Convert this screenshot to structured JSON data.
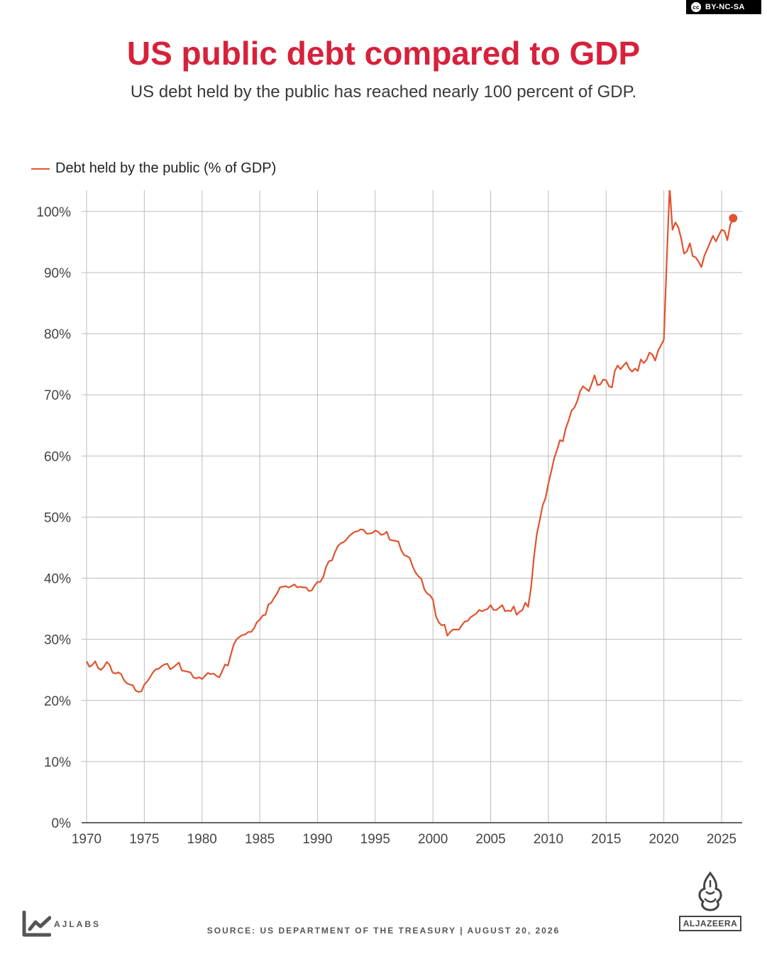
{
  "license": {
    "badge_text": "BY-NC-SA",
    "icon": "cc-icon"
  },
  "header": {
    "title": "US public debt compared to GDP",
    "subtitle": "US debt held by the public has reached nearly 100 percent of GDP."
  },
  "footer": {
    "source": "SOURCE: US DEPARTMENT OF THE TREASURY  |  AUGUST 20, 2026",
    "ajlabs_text": "AJLABS",
    "aljazeera_text": "ALJAZEERA"
  },
  "colors": {
    "title": "#d7213b",
    "line": "#e0532f",
    "grid": "#bdbdbd",
    "axis": "#333333"
  },
  "chart_data": {
    "type": "line",
    "title": "US public debt compared to GDP",
    "subtitle": "US debt held by the public has reached nearly 100 percent of GDP.",
    "xlabel": "",
    "ylabel": "",
    "xlim": [
      1969.5,
      2026.8
    ],
    "ylim": [
      0,
      103
    ],
    "x_ticks": [
      1970,
      1975,
      1980,
      1985,
      1990,
      1995,
      2000,
      2005,
      2010,
      2015,
      2020,
      2025
    ],
    "y_ticks": [
      0,
      10,
      20,
      30,
      40,
      50,
      60,
      70,
      80,
      90,
      100
    ],
    "y_tick_labels": [
      "0%",
      "10%",
      "20%",
      "30%",
      "40%",
      "50%",
      "60%",
      "70%",
      "80%",
      "90%",
      "100%"
    ],
    "grid": true,
    "legend_position": "top-left",
    "series": [
      {
        "name": "Debt held by the public (% of GDP)",
        "color": "#e0532f",
        "last_point_marker": true,
        "points": [
          [
            1970.0,
            26.4
          ],
          [
            1970.25,
            25.5
          ],
          [
            1970.5,
            25.8
          ],
          [
            1970.75,
            26.4
          ],
          [
            1971.0,
            25.3
          ],
          [
            1971.25,
            25.0
          ],
          [
            1971.5,
            25.5
          ],
          [
            1971.75,
            26.3
          ],
          [
            1972.0,
            25.8
          ],
          [
            1972.25,
            24.6
          ],
          [
            1972.5,
            24.4
          ],
          [
            1972.75,
            24.6
          ],
          [
            1973.0,
            24.3
          ],
          [
            1973.25,
            23.3
          ],
          [
            1973.5,
            22.8
          ],
          [
            1973.75,
            22.6
          ],
          [
            1974.0,
            22.5
          ],
          [
            1974.25,
            21.6
          ],
          [
            1974.5,
            21.4
          ],
          [
            1974.75,
            21.5
          ],
          [
            1975.0,
            22.6
          ],
          [
            1975.25,
            23.1
          ],
          [
            1975.5,
            23.8
          ],
          [
            1975.75,
            24.6
          ],
          [
            1976.0,
            25.1
          ],
          [
            1976.25,
            25.2
          ],
          [
            1976.5,
            25.6
          ],
          [
            1976.75,
            25.9
          ],
          [
            1977.0,
            26.0
          ],
          [
            1977.25,
            25.1
          ],
          [
            1977.5,
            25.4
          ],
          [
            1977.75,
            25.8
          ],
          [
            1978.0,
            26.2
          ],
          [
            1978.25,
            24.9
          ],
          [
            1978.5,
            24.8
          ],
          [
            1978.75,
            24.7
          ],
          [
            1979.0,
            24.6
          ],
          [
            1979.25,
            23.8
          ],
          [
            1979.5,
            23.6
          ],
          [
            1979.75,
            23.8
          ],
          [
            1980.0,
            23.5
          ],
          [
            1980.25,
            24.0
          ],
          [
            1980.5,
            24.5
          ],
          [
            1980.75,
            24.3
          ],
          [
            1981.0,
            24.4
          ],
          [
            1981.25,
            24.0
          ],
          [
            1981.5,
            23.8
          ],
          [
            1981.75,
            24.8
          ],
          [
            1982.0,
            25.9
          ],
          [
            1982.25,
            25.7
          ],
          [
            1982.5,
            27.5
          ],
          [
            1982.75,
            29.2
          ],
          [
            1983.0,
            30.0
          ],
          [
            1983.25,
            30.4
          ],
          [
            1983.5,
            30.7
          ],
          [
            1983.75,
            30.8
          ],
          [
            1984.0,
            31.2
          ],
          [
            1984.25,
            31.2
          ],
          [
            1984.5,
            31.8
          ],
          [
            1984.75,
            32.8
          ],
          [
            1985.0,
            33.2
          ],
          [
            1985.25,
            33.9
          ],
          [
            1985.5,
            34.0
          ],
          [
            1985.75,
            35.7
          ],
          [
            1986.0,
            36.0
          ],
          [
            1986.25,
            36.8
          ],
          [
            1986.5,
            37.5
          ],
          [
            1986.75,
            38.5
          ],
          [
            1987.0,
            38.6
          ],
          [
            1987.25,
            38.7
          ],
          [
            1987.5,
            38.5
          ],
          [
            1987.75,
            38.7
          ],
          [
            1988.0,
            39.0
          ],
          [
            1988.25,
            38.5
          ],
          [
            1988.5,
            38.6
          ],
          [
            1988.75,
            38.5
          ],
          [
            1989.0,
            38.5
          ],
          [
            1989.25,
            37.9
          ],
          [
            1989.5,
            38.0
          ],
          [
            1989.75,
            38.8
          ],
          [
            1990.0,
            39.4
          ],
          [
            1990.25,
            39.4
          ],
          [
            1990.5,
            40.2
          ],
          [
            1990.75,
            41.9
          ],
          [
            1991.0,
            42.8
          ],
          [
            1991.25,
            42.9
          ],
          [
            1991.5,
            44.2
          ],
          [
            1991.75,
            45.2
          ],
          [
            1992.0,
            45.7
          ],
          [
            1992.25,
            45.9
          ],
          [
            1992.5,
            46.3
          ],
          [
            1992.75,
            46.9
          ],
          [
            1993.0,
            47.3
          ],
          [
            1993.25,
            47.6
          ],
          [
            1993.5,
            47.7
          ],
          [
            1993.75,
            48.0
          ],
          [
            1994.0,
            47.9
          ],
          [
            1994.25,
            47.3
          ],
          [
            1994.5,
            47.3
          ],
          [
            1994.75,
            47.4
          ],
          [
            1995.0,
            47.8
          ],
          [
            1995.25,
            47.6
          ],
          [
            1995.5,
            47.1
          ],
          [
            1995.75,
            47.2
          ],
          [
            1996.0,
            47.6
          ],
          [
            1996.25,
            46.3
          ],
          [
            1996.5,
            46.2
          ],
          [
            1996.75,
            46.1
          ],
          [
            1997.0,
            46.0
          ],
          [
            1997.25,
            44.6
          ],
          [
            1997.5,
            43.8
          ],
          [
            1997.75,
            43.6
          ],
          [
            1998.0,
            43.3
          ],
          [
            1998.25,
            41.9
          ],
          [
            1998.5,
            40.9
          ],
          [
            1998.75,
            40.3
          ],
          [
            1999.0,
            39.9
          ],
          [
            1999.25,
            38.2
          ],
          [
            1999.5,
            37.5
          ],
          [
            1999.75,
            37.2
          ],
          [
            2000.0,
            36.5
          ],
          [
            2000.25,
            33.8
          ],
          [
            2000.5,
            32.8
          ],
          [
            2000.75,
            32.3
          ],
          [
            2001.0,
            32.4
          ],
          [
            2001.25,
            30.6
          ],
          [
            2001.5,
            31.2
          ],
          [
            2001.75,
            31.6
          ],
          [
            2002.0,
            31.6
          ],
          [
            2002.25,
            31.6
          ],
          [
            2002.5,
            32.3
          ],
          [
            2002.75,
            32.9
          ],
          [
            2003.0,
            33.0
          ],
          [
            2003.25,
            33.6
          ],
          [
            2003.5,
            33.9
          ],
          [
            2003.75,
            34.2
          ],
          [
            2004.0,
            34.8
          ],
          [
            2004.25,
            34.6
          ],
          [
            2004.5,
            34.8
          ],
          [
            2004.75,
            35.0
          ],
          [
            2005.0,
            35.6
          ],
          [
            2005.25,
            34.8
          ],
          [
            2005.5,
            34.8
          ],
          [
            2005.75,
            35.2
          ],
          [
            2006.0,
            35.6
          ],
          [
            2006.25,
            34.6
          ],
          [
            2006.5,
            34.7
          ],
          [
            2006.75,
            34.6
          ],
          [
            2007.0,
            35.4
          ],
          [
            2007.25,
            34.0
          ],
          [
            2007.5,
            34.5
          ],
          [
            2007.75,
            34.8
          ],
          [
            2008.0,
            36.0
          ],
          [
            2008.25,
            35.3
          ],
          [
            2008.5,
            38.5
          ],
          [
            2008.75,
            43.5
          ],
          [
            2009.0,
            47.2
          ],
          [
            2009.25,
            49.5
          ],
          [
            2009.5,
            51.9
          ],
          [
            2009.75,
            53.1
          ],
          [
            2010.0,
            55.5
          ],
          [
            2010.25,
            57.5
          ],
          [
            2010.5,
            59.6
          ],
          [
            2010.75,
            61.0
          ],
          [
            2011.0,
            62.6
          ],
          [
            2011.25,
            62.4
          ],
          [
            2011.5,
            64.5
          ],
          [
            2011.75,
            65.8
          ],
          [
            2012.0,
            67.4
          ],
          [
            2012.25,
            67.9
          ],
          [
            2012.5,
            69.0
          ],
          [
            2012.75,
            70.6
          ],
          [
            2013.0,
            71.4
          ],
          [
            2013.25,
            71.0
          ],
          [
            2013.5,
            70.6
          ],
          [
            2013.75,
            71.8
          ],
          [
            2014.0,
            73.2
          ],
          [
            2014.25,
            71.6
          ],
          [
            2014.5,
            71.7
          ],
          [
            2014.75,
            72.5
          ],
          [
            2015.0,
            72.4
          ],
          [
            2015.25,
            71.4
          ],
          [
            2015.5,
            71.2
          ],
          [
            2015.75,
            73.9
          ],
          [
            2016.0,
            74.8
          ],
          [
            2016.25,
            74.2
          ],
          [
            2016.5,
            74.8
          ],
          [
            2016.75,
            75.3
          ],
          [
            2017.0,
            74.3
          ],
          [
            2017.25,
            73.8
          ],
          [
            2017.5,
            74.3
          ],
          [
            2017.75,
            73.9
          ],
          [
            2018.0,
            75.8
          ],
          [
            2018.25,
            75.2
          ],
          [
            2018.5,
            75.7
          ],
          [
            2018.75,
            76.9
          ],
          [
            2019.0,
            76.6
          ],
          [
            2019.25,
            75.6
          ],
          [
            2019.5,
            77.2
          ],
          [
            2019.75,
            78.1
          ],
          [
            2020.0,
            79.0
          ],
          [
            2020.25,
            92.0
          ],
          [
            2020.5,
            104.0
          ],
          [
            2020.75,
            97.0
          ],
          [
            2021.0,
            98.2
          ],
          [
            2021.25,
            97.4
          ],
          [
            2021.5,
            95.6
          ],
          [
            2021.75,
            93.1
          ],
          [
            2022.0,
            93.5
          ],
          [
            2022.25,
            94.8
          ],
          [
            2022.5,
            92.7
          ],
          [
            2022.75,
            92.5
          ],
          [
            2023.0,
            91.8
          ],
          [
            2023.25,
            90.9
          ],
          [
            2023.5,
            92.7
          ],
          [
            2023.75,
            93.8
          ],
          [
            2024.0,
            94.9
          ],
          [
            2024.25,
            96.0
          ],
          [
            2024.5,
            95.1
          ],
          [
            2024.75,
            96.1
          ],
          [
            2025.0,
            97.0
          ],
          [
            2025.25,
            96.8
          ],
          [
            2025.5,
            95.3
          ],
          [
            2025.75,
            97.8
          ],
          [
            2026.0,
            98.9
          ]
        ]
      }
    ]
  }
}
